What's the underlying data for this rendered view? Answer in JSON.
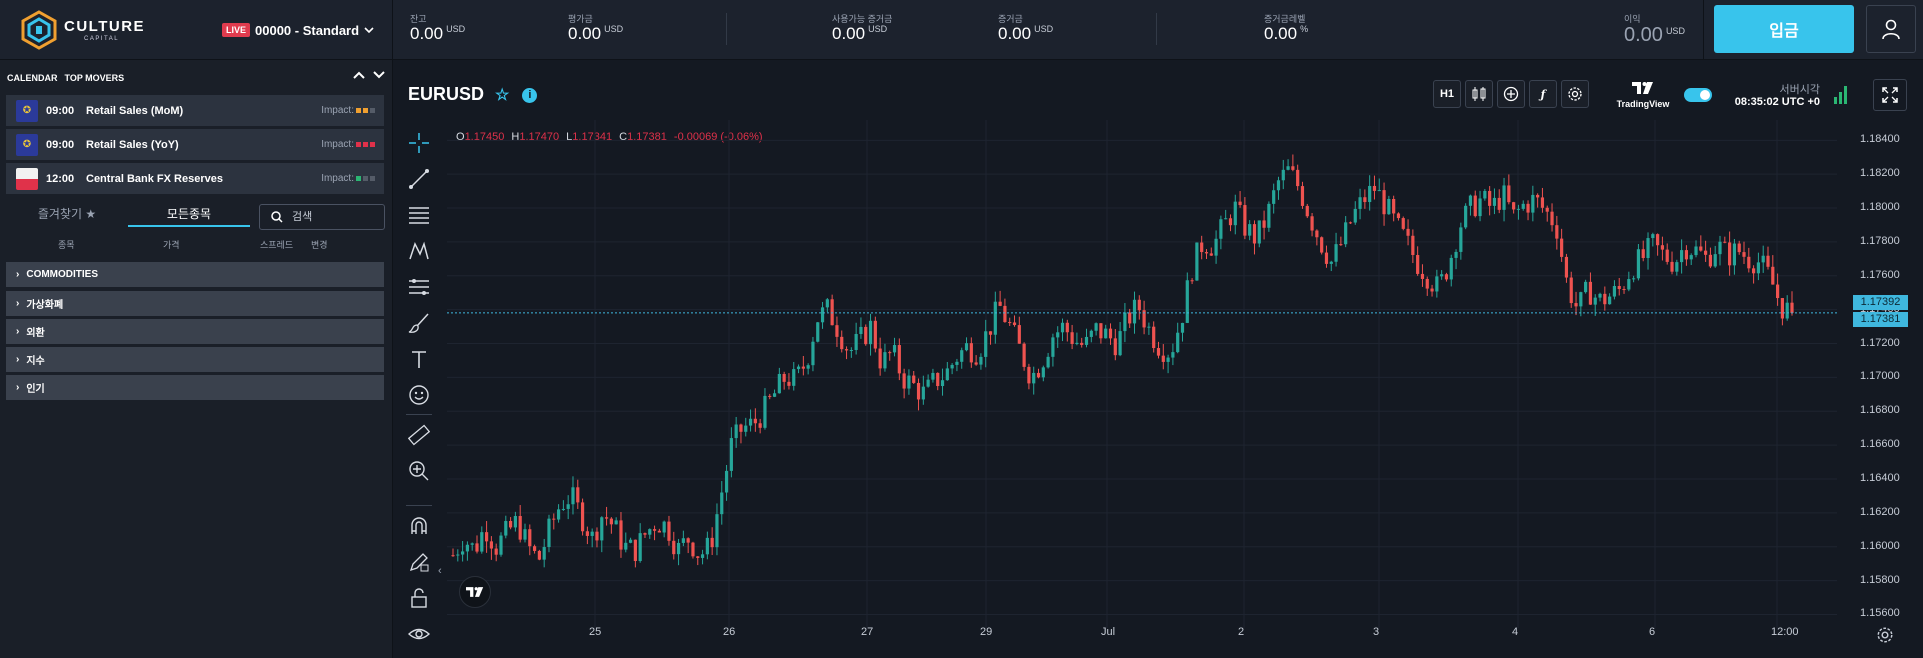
{
  "brand": {
    "name_line1": "CULTURE",
    "name_line2": "CAPITAL"
  },
  "account": {
    "badge": "LIVE",
    "name": "00000 - Standard"
  },
  "stats": [
    {
      "label": "잔고",
      "value": "0.00",
      "unit": "USD"
    },
    {
      "label": "평가금",
      "value": "0.00",
      "unit": "USD"
    },
    {
      "label": "사용가능 증거금",
      "value": "0.00",
      "unit": "USD"
    },
    {
      "label": "증거금",
      "value": "0.00",
      "unit": "USD"
    },
    {
      "label": "증거금레벨",
      "value": "0.00",
      "unit": "%"
    },
    {
      "label": "이익",
      "value": "0.00",
      "unit": "USD"
    }
  ],
  "deposit_label": "입금",
  "calendar": {
    "tab1": "CALENDAR",
    "tab2": "TOP MOVERS",
    "impact_label": "Impact:",
    "events": [
      {
        "time": "09:00",
        "title": "Retail Sales (MoM)",
        "impact_colors": [
          "#f0a030",
          "#f0a030",
          "#555c68"
        ]
      },
      {
        "time": "09:00",
        "title": "Retail Sales (YoY)",
        "impact_colors": [
          "#e0314a",
          "#e0314a",
          "#e0314a"
        ]
      },
      {
        "time": "12:00",
        "title": "Central Bank FX Reserves",
        "impact_colors": [
          "#2bb673",
          "#555c68",
          "#555c68"
        ]
      }
    ]
  },
  "market_tabs": {
    "favorites": "즐겨찾기",
    "all": "모든종목"
  },
  "search": {
    "placeholder": "검색"
  },
  "columns": {
    "symbol": "종목",
    "price": "가격",
    "spread": "스프레드",
    "change": "변경"
  },
  "categories": [
    "COMMODITIES",
    "가상화폐",
    "외환",
    "지수",
    "인기"
  ],
  "chart": {
    "symbol": "EURUSD",
    "timeframe": "H1",
    "brand": "TradingView",
    "server_label": "서버시각",
    "server_time": "08:35:02 UTC +0",
    "ohlc": {
      "o": "1.17450",
      "h": "1.17470",
      "l": "1.17341",
      "c": "1.17381",
      "change": "-0.00069 (-0.06%)"
    },
    "price_tags": [
      "1.17392",
      "1.17381"
    ],
    "y_ticks": [
      "1.18400",
      "1.18200",
      "1.18000",
      "1.17800",
      "1.17600",
      "1.17400",
      "1.17200",
      "1.17000",
      "1.16800",
      "1.16600",
      "1.16400",
      "1.16200",
      "1.16000",
      "1.15800",
      "1.15600"
    ],
    "x_ticks": [
      "25",
      "26",
      "27",
      "29",
      "Jul",
      "2",
      "3",
      "4",
      "6",
      "12:00"
    ],
    "colors": {
      "up": "#26a69a",
      "down": "#ef5350",
      "last_price": "#3fb7de"
    }
  },
  "chart_data": {
    "type": "candlestick",
    "title": "EURUSD",
    "timeframe": "H1",
    "ylim": [
      1.1552,
      1.1852
    ],
    "x_ticks": [
      "25",
      "26",
      "27",
      "29",
      "Jul",
      "2",
      "3",
      "4",
      "6",
      "12:00"
    ],
    "close_path": [
      1.1595,
      1.1605,
      1.1598,
      1.1612,
      1.16,
      1.1608,
      1.1615,
      1.16,
      1.1592,
      1.161,
      1.1625,
      1.163,
      1.1618,
      1.1605,
      1.162,
      1.1612,
      1.16,
      1.1598,
      1.1608,
      1.1615,
      1.1612,
      1.1598,
      1.1605,
      1.1595,
      1.16,
      1.163,
      1.166,
      1.167,
      1.1672,
      1.168,
      1.169,
      1.17,
      1.1698,
      1.171,
      1.1735,
      1.174,
      1.1728,
      1.1715,
      1.1722,
      1.173,
      1.1708,
      1.1715,
      1.17,
      1.1695,
      1.169,
      1.1698,
      1.1702,
      1.1712,
      1.1718,
      1.1715,
      1.1728,
      1.1742,
      1.173,
      1.1715,
      1.17,
      1.171,
      1.1725,
      1.173,
      1.1722,
      1.1718,
      1.1728,
      1.1725,
      1.172,
      1.1735,
      1.1742,
      1.1728,
      1.1718,
      1.1715,
      1.1735,
      1.1765,
      1.178,
      1.1778,
      1.179,
      1.18,
      1.1788,
      1.1782,
      1.1795,
      1.1815,
      1.1822,
      1.1812,
      1.1795,
      1.178,
      1.1768,
      1.178,
      1.1795,
      1.1805,
      1.1812,
      1.1802,
      1.179,
      1.178,
      1.1768,
      1.176,
      1.1752,
      1.1768,
      1.179,
      1.18,
      1.1805,
      1.18,
      1.1808,
      1.1795,
      1.1802,
      1.1805,
      1.1798,
      1.179,
      1.1755,
      1.174,
      1.1752,
      1.1745,
      1.1748,
      1.1752,
      1.1765,
      1.177,
      1.1778,
      1.1772,
      1.1768,
      1.1778,
      1.1775,
      1.177,
      1.1778,
      1.1772,
      1.1775,
      1.177,
      1.1768,
      1.1758,
      1.1742,
      1.1738
    ],
    "last_price": 1.17381
  }
}
